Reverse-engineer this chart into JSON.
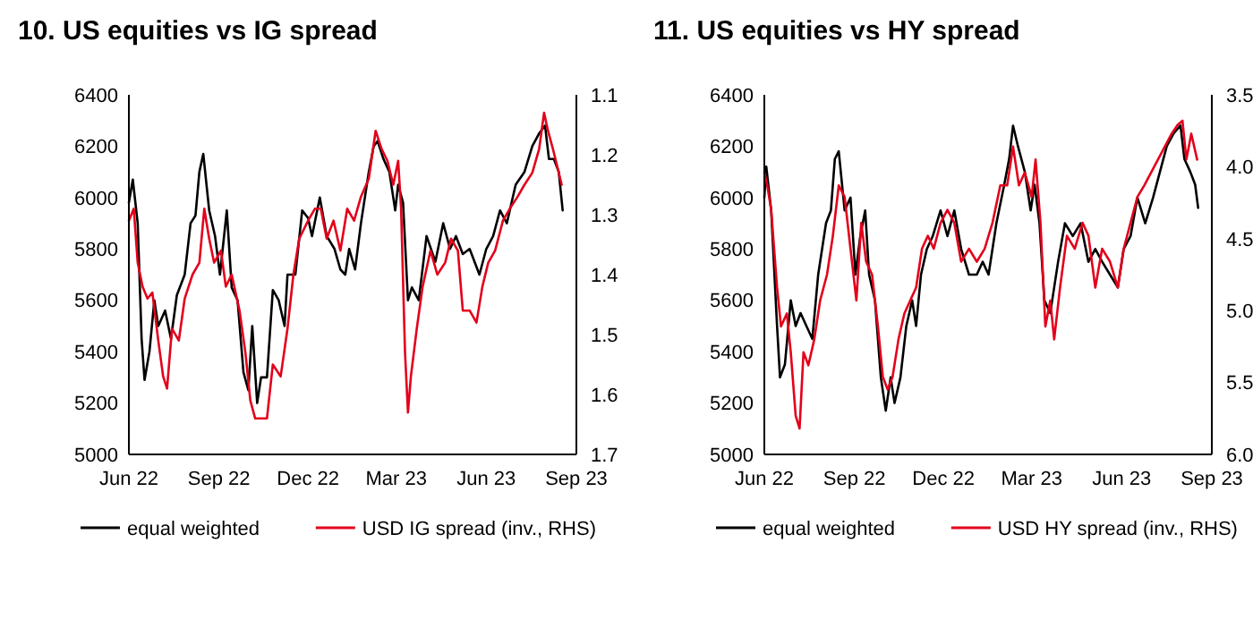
{
  "chart_data": [
    {
      "type": "line",
      "title": "10. US equities vs IG spread",
      "legend": "bottom",
      "xlim": [
        "2022-06-01",
        "2023-09-01"
      ],
      "xticks": [
        {
          "value": "2022-06-01",
          "label": "Jun 22"
        },
        {
          "value": "2022-09-01",
          "label": "Sep 22"
        },
        {
          "value": "2022-12-01",
          "label": "Dec 22"
        },
        {
          "value": "2023-03-01",
          "label": "Mar 23"
        },
        {
          "value": "2023-06-01",
          "label": "Jun 23"
        },
        {
          "value": "2023-09-01",
          "label": "Sep 23"
        }
      ],
      "ylim": [
        5000,
        6400
      ],
      "yticks": [
        5000,
        5200,
        5400,
        5600,
        5800,
        6000,
        6200,
        6400
      ],
      "y2lim": [
        1.7,
        1.1
      ],
      "y2ticks": [
        1.1,
        1.2,
        1.3,
        1.4,
        1.5,
        1.6,
        1.7
      ],
      "series": [
        {
          "name": "equal weighted",
          "color": "#000000",
          "x": [
            "2022-06-01",
            "2022-06-05",
            "2022-06-10",
            "2022-06-14",
            "2022-06-17",
            "2022-06-22",
            "2022-06-27",
            "2022-07-01",
            "2022-07-08",
            "2022-07-14",
            "2022-07-20",
            "2022-07-28",
            "2022-08-03",
            "2022-08-08",
            "2022-08-12",
            "2022-08-16",
            "2022-08-22",
            "2022-08-28",
            "2022-09-02",
            "2022-09-09",
            "2022-09-14",
            "2022-09-20",
            "2022-09-26",
            "2022-10-01",
            "2022-10-05",
            "2022-10-10",
            "2022-10-14",
            "2022-10-20",
            "2022-10-26",
            "2022-11-01",
            "2022-11-07",
            "2022-11-10",
            "2022-11-18",
            "2022-11-25",
            "2022-12-01",
            "2022-12-05",
            "2022-12-13",
            "2022-12-20",
            "2022-12-28",
            "2023-01-03",
            "2023-01-08",
            "2023-01-12",
            "2023-01-18",
            "2023-01-24",
            "2023-02-01",
            "2023-02-06",
            "2023-02-10",
            "2023-02-16",
            "2023-02-22",
            "2023-02-28",
            "2023-03-03",
            "2023-03-08",
            "2023-03-13",
            "2023-03-17",
            "2023-03-24",
            "2023-04-01",
            "2023-04-10",
            "2023-04-18",
            "2023-04-25",
            "2023-05-01",
            "2023-05-08",
            "2023-05-15",
            "2023-05-25",
            "2023-06-01",
            "2023-06-08",
            "2023-06-15",
            "2023-06-22",
            "2023-07-01",
            "2023-07-10",
            "2023-07-18",
            "2023-07-25",
            "2023-07-31",
            "2023-08-04",
            "2023-08-09",
            "2023-08-14",
            "2023-08-18"
          ],
          "values": [
            5980,
            6070,
            5900,
            5450,
            5290,
            5400,
            5600,
            5500,
            5560,
            5450,
            5620,
            5700,
            5900,
            5930,
            6100,
            6170,
            5950,
            5850,
            5700,
            5950,
            5650,
            5600,
            5320,
            5250,
            5500,
            5200,
            5300,
            5300,
            5640,
            5600,
            5500,
            5700,
            5700,
            5950,
            5920,
            5850,
            6000,
            5850,
            5800,
            5720,
            5700,
            5800,
            5720,
            5900,
            6100,
            6200,
            6220,
            6150,
            6100,
            5950,
            6050,
            5980,
            5600,
            5650,
            5600,
            5850,
            5750,
            5900,
            5800,
            5850,
            5780,
            5800,
            5700,
            5800,
            5850,
            5950,
            5900,
            6050,
            6100,
            6200,
            6250,
            6280,
            6150,
            6150,
            6100,
            5950
          ]
        },
        {
          "name": "USD IG spread (inv., RHS)",
          "color": "#e3001b",
          "axis": "y2",
          "x": [
            "2022-06-01",
            "2022-06-06",
            "2022-06-10",
            "2022-06-15",
            "2022-06-20",
            "2022-06-25",
            "2022-07-01",
            "2022-07-06",
            "2022-07-10",
            "2022-07-15",
            "2022-07-22",
            "2022-07-28",
            "2022-08-05",
            "2022-08-12",
            "2022-08-17",
            "2022-08-22",
            "2022-08-27",
            "2022-09-03",
            "2022-09-08",
            "2022-09-14",
            "2022-09-22",
            "2022-09-28",
            "2022-10-03",
            "2022-10-08",
            "2022-10-14",
            "2022-10-20",
            "2022-10-26",
            "2022-11-03",
            "2022-11-10",
            "2022-11-16",
            "2022-11-22",
            "2022-12-01",
            "2022-12-08",
            "2022-12-14",
            "2022-12-20",
            "2022-12-27",
            "2023-01-03",
            "2023-01-10",
            "2023-01-17",
            "2023-01-24",
            "2023-02-01",
            "2023-02-08",
            "2023-02-14",
            "2023-02-20",
            "2023-02-26",
            "2023-03-03",
            "2023-03-06",
            "2023-03-10",
            "2023-03-13",
            "2023-03-16",
            "2023-03-22",
            "2023-03-28",
            "2023-04-05",
            "2023-04-12",
            "2023-04-20",
            "2023-04-26",
            "2023-05-03",
            "2023-05-08",
            "2023-05-15",
            "2023-05-22",
            "2023-05-28",
            "2023-06-03",
            "2023-06-10",
            "2023-06-18",
            "2023-06-25",
            "2023-07-03",
            "2023-07-10",
            "2023-07-18",
            "2023-07-25",
            "2023-07-30",
            "2023-08-03",
            "2023-08-08",
            "2023-08-14",
            "2023-08-17"
          ],
          "values": [
            1.31,
            1.29,
            1.38,
            1.42,
            1.44,
            1.43,
            1.51,
            1.57,
            1.59,
            1.49,
            1.51,
            1.44,
            1.4,
            1.38,
            1.29,
            1.34,
            1.38,
            1.36,
            1.42,
            1.4,
            1.46,
            1.53,
            1.61,
            1.64,
            1.64,
            1.64,
            1.55,
            1.57,
            1.49,
            1.4,
            1.34,
            1.31,
            1.29,
            1.29,
            1.34,
            1.31,
            1.36,
            1.29,
            1.31,
            1.27,
            1.24,
            1.16,
            1.19,
            1.21,
            1.25,
            1.21,
            1.29,
            1.53,
            1.63,
            1.57,
            1.49,
            1.42,
            1.36,
            1.4,
            1.38,
            1.34,
            1.36,
            1.46,
            1.46,
            1.48,
            1.42,
            1.38,
            1.36,
            1.31,
            1.29,
            1.27,
            1.25,
            1.23,
            1.19,
            1.13,
            1.16,
            1.19,
            1.23,
            1.25
          ]
        }
      ]
    },
    {
      "type": "line",
      "title": "11. US equities vs HY spread",
      "legend": "bottom",
      "xlim": [
        "2022-06-01",
        "2023-09-01"
      ],
      "xticks": [
        {
          "value": "2022-06-01",
          "label": "Jun 22"
        },
        {
          "value": "2022-09-01",
          "label": "Sep 22"
        },
        {
          "value": "2022-12-01",
          "label": "Dec 22"
        },
        {
          "value": "2023-03-01",
          "label": "Mar 23"
        },
        {
          "value": "2023-06-01",
          "label": "Jun 23"
        },
        {
          "value": "2023-09-01",
          "label": "Sep 23"
        }
      ],
      "ylim": [
        5000,
        6400
      ],
      "yticks": [
        5000,
        5200,
        5400,
        5600,
        5800,
        6000,
        6200,
        6400
      ],
      "y2lim": [
        6.0,
        3.5
      ],
      "y2ticks": [
        3.5,
        {
          "value": 4,
          "label": "4.0"
        },
        4.5,
        {
          "value": 5,
          "label": "5.0"
        },
        5.5,
        {
          "value": 6,
          "label": "6.0"
        }
      ],
      "series": [
        {
          "name": "equal weighted",
          "color": "#000000",
          "x": [
            "2022-06-01",
            "2022-06-03",
            "2022-06-08",
            "2022-06-14",
            "2022-06-17",
            "2022-06-22",
            "2022-06-28",
            "2022-07-03",
            "2022-07-08",
            "2022-07-14",
            "2022-07-20",
            "2022-07-26",
            "2022-08-03",
            "2022-08-08",
            "2022-08-12",
            "2022-08-16",
            "2022-08-22",
            "2022-08-28",
            "2022-09-02",
            "2022-09-07",
            "2022-09-12",
            "2022-09-16",
            "2022-09-22",
            "2022-09-28",
            "2022-10-03",
            "2022-10-08",
            "2022-10-12",
            "2022-10-18",
            "2022-10-24",
            "2022-10-30",
            "2022-11-03",
            "2022-11-08",
            "2022-11-14",
            "2022-11-20",
            "2022-11-28",
            "2022-12-05",
            "2022-12-12",
            "2022-12-19",
            "2022-12-27",
            "2023-01-04",
            "2023-01-10",
            "2023-01-16",
            "2023-01-24",
            "2023-02-01",
            "2023-02-06",
            "2023-02-10",
            "2023-02-15",
            "2023-02-22",
            "2023-02-28",
            "2023-03-04",
            "2023-03-09",
            "2023-03-14",
            "2023-03-20",
            "2023-03-28",
            "2023-04-04",
            "2023-04-12",
            "2023-04-20",
            "2023-04-28",
            "2023-05-05",
            "2023-05-12",
            "2023-05-20",
            "2023-05-28",
            "2023-06-03",
            "2023-06-10",
            "2023-06-17",
            "2023-06-25",
            "2023-07-03",
            "2023-07-10",
            "2023-07-17",
            "2023-07-24",
            "2023-07-31",
            "2023-08-04",
            "2023-08-10",
            "2023-08-15",
            "2023-08-18"
          ],
          "values": [
            6000,
            6120,
            5950,
            5500,
            5300,
            5350,
            5600,
            5500,
            5550,
            5500,
            5450,
            5700,
            5900,
            5950,
            6150,
            6180,
            5950,
            6000,
            5700,
            5850,
            5950,
            5700,
            5600,
            5300,
            5170,
            5300,
            5200,
            5300,
            5500,
            5600,
            5500,
            5700,
            5800,
            5850,
            5950,
            5850,
            5950,
            5800,
            5700,
            5700,
            5750,
            5700,
            5900,
            6050,
            6150,
            6280,
            6200,
            6100,
            5950,
            6050,
            5900,
            5600,
            5550,
            5750,
            5900,
            5850,
            5900,
            5750,
            5800,
            5750,
            5700,
            5650,
            5800,
            5850,
            6000,
            5900,
            6000,
            6100,
            6200,
            6250,
            6280,
            6150,
            6100,
            6050,
            5960
          ]
        },
        {
          "name": "USD HY spread (inv., RHS)",
          "color": "#e3001b",
          "axis": "y2",
          "x": [
            "2022-06-01",
            "2022-06-04",
            "2022-06-08",
            "2022-06-14",
            "2022-06-18",
            "2022-06-24",
            "2022-06-28",
            "2022-07-03",
            "2022-07-07",
            "2022-07-11",
            "2022-07-16",
            "2022-07-22",
            "2022-07-28",
            "2022-08-04",
            "2022-08-10",
            "2022-08-16",
            "2022-08-22",
            "2022-08-28",
            "2022-09-03",
            "2022-09-08",
            "2022-09-13",
            "2022-09-19",
            "2022-09-25",
            "2022-09-30",
            "2022-10-05",
            "2022-10-10",
            "2022-10-16",
            "2022-10-22",
            "2022-10-28",
            "2022-11-03",
            "2022-11-09",
            "2022-11-15",
            "2022-11-21",
            "2022-11-28",
            "2022-12-05",
            "2022-12-12",
            "2022-12-19",
            "2022-12-27",
            "2023-01-04",
            "2023-01-12",
            "2023-01-20",
            "2023-01-28",
            "2023-02-04",
            "2023-02-10",
            "2023-02-16",
            "2023-02-22",
            "2023-03-01",
            "2023-03-05",
            "2023-03-10",
            "2023-03-15",
            "2023-03-20",
            "2023-03-24",
            "2023-03-30",
            "2023-04-06",
            "2023-04-14",
            "2023-04-22",
            "2023-04-28",
            "2023-05-05",
            "2023-05-12",
            "2023-05-20",
            "2023-05-28",
            "2023-06-03",
            "2023-06-10",
            "2023-06-17",
            "2023-06-24",
            "2023-07-01",
            "2023-07-08",
            "2023-07-15",
            "2023-07-22",
            "2023-07-28",
            "2023-08-02",
            "2023-08-06",
            "2023-08-11",
            "2023-08-17"
          ],
          "values": [
            4.04,
            4.13,
            4.3,
            4.84,
            5.11,
            5.02,
            5.29,
            5.73,
            5.82,
            5.29,
            5.38,
            5.2,
            4.93,
            4.75,
            4.48,
            4.13,
            4.21,
            4.57,
            4.93,
            4.39,
            4.66,
            4.75,
            5.11,
            5.46,
            5.55,
            5.46,
            5.2,
            5.02,
            4.93,
            4.84,
            4.57,
            4.48,
            4.57,
            4.39,
            4.3,
            4.39,
            4.66,
            4.57,
            4.66,
            4.57,
            4.39,
            4.13,
            4.13,
            3.86,
            4.13,
            4.04,
            4.21,
            3.95,
            4.39,
            5.11,
            4.93,
            5.2,
            4.84,
            4.48,
            4.57,
            4.39,
            4.48,
            4.84,
            4.57,
            4.66,
            4.84,
            4.57,
            4.39,
            4.21,
            4.13,
            4.04,
            3.95,
            3.86,
            3.77,
            3.71,
            3.68,
            3.95,
            3.77,
            3.95
          ]
        }
      ]
    }
  ]
}
